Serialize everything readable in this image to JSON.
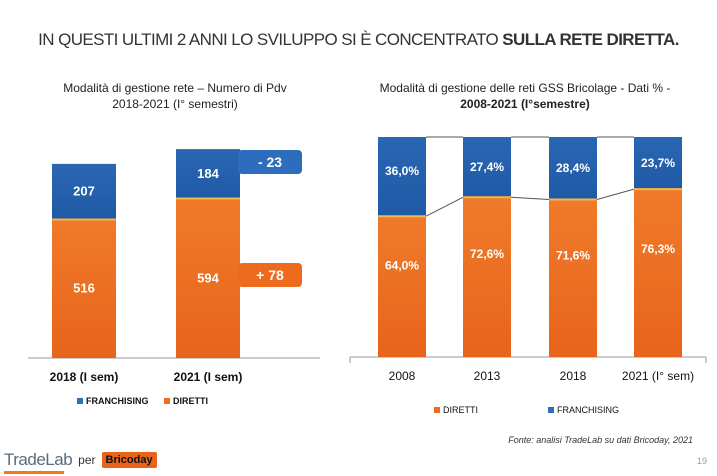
{
  "page": {
    "title_normal": "IN QUESTI ULTIMI 2 ANNI LO SVILUPPO SI È CONCENTRATO",
    "title_bold": "SULLA RETE DIRETTA.",
    "source": "Fonte: analisi TradeLab su dati Bricoday, 2021",
    "page_number": "19",
    "footer": {
      "logo_text": "TradeLab",
      "per": "per",
      "brico_a": "Brico",
      "brico_b": "day"
    }
  },
  "colors": {
    "diretti": "#ec6e1c",
    "franchising": "#2e6fb8",
    "callout_orange": "#ee6a1c",
    "callout_blue": "#2d6dbd"
  },
  "chart_data": [
    {
      "type": "bar",
      "stacked": true,
      "title_line1": "Modalità di gestione rete – Numero di Pdv",
      "title_line2": "2018-2021 (I° semestri)",
      "categories": [
        "2018 (I sem)",
        "2021 (I sem)"
      ],
      "series": [
        {
          "name": "DIRETTI",
          "values": [
            516,
            594
          ],
          "labels": [
            "516",
            "594"
          ]
        },
        {
          "name": "FRANCHISING",
          "values": [
            207,
            184
          ],
          "labels": [
            "207",
            "184"
          ]
        }
      ],
      "legend": [
        "FRANCHISING",
        "DIRETTI"
      ],
      "annotations": [
        {
          "text": "- 23",
          "series": "FRANCHISING"
        },
        {
          "text": "+ 78",
          "series": "DIRETTI"
        }
      ]
    },
    {
      "type": "bar",
      "stacked": true,
      "percent": true,
      "title_line1": "Modalità di gestione delle reti GSS Bricolage - Dati % -",
      "title_line2": "2008-2021 (I°semestre)",
      "categories": [
        "2008",
        "2013",
        "2018",
        "2021 (I° sem)"
      ],
      "series": [
        {
          "name": "DIRETTI",
          "values": [
            64.0,
            72.6,
            71.6,
            76.3
          ],
          "labels": [
            "64,0%",
            "72,6%",
            "71,6%",
            "76,3%"
          ]
        },
        {
          "name": "FRANCHISING",
          "values": [
            36.0,
            27.4,
            28.4,
            23.7
          ],
          "labels": [
            "36,0%",
            "27,4%",
            "28,4%",
            "23,7%"
          ]
        }
      ],
      "legend": [
        "DIRETTI",
        "FRANCHISING"
      ],
      "ylim": [
        0,
        100
      ]
    }
  ]
}
